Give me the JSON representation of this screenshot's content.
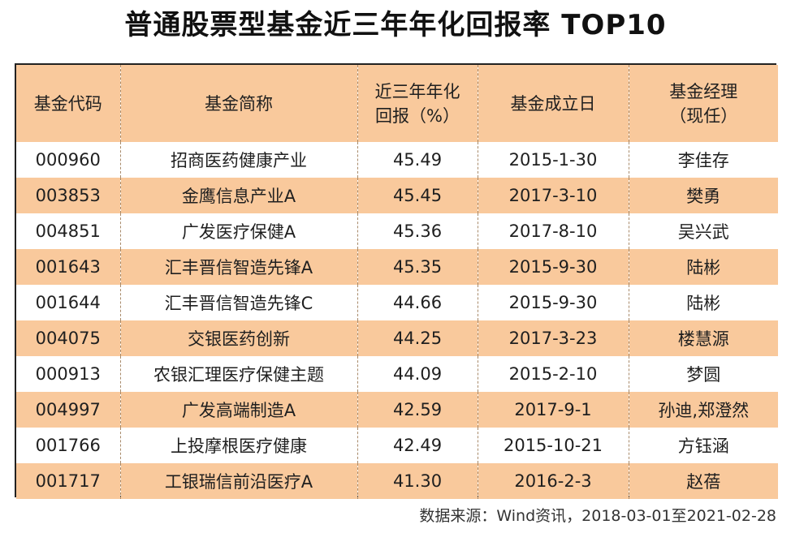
{
  "title": "普通股票型基金近三年年化回报率 TOP10",
  "source": "数据来源：Wind资讯，2018-03-01至2021-02-28",
  "colors": {
    "header_bg": "#f9c99c",
    "stripe_bg": "#f9c99c",
    "plain_bg": "#ffffff"
  },
  "chart_data": {
    "type": "table",
    "title": "普通股票型基金近三年年化回报率 TOP10",
    "columns": [
      {
        "line1": "基金代码",
        "line2": ""
      },
      {
        "line1": "基金简称",
        "line2": ""
      },
      {
        "line1": "近三年年化",
        "line2": "回报（%）"
      },
      {
        "line1": "基金成立日",
        "line2": ""
      },
      {
        "line1": "基金经理",
        "line2": "（现任）"
      }
    ],
    "rows": [
      [
        "000960",
        "招商医药健康产业",
        "45.49",
        "2015-1-30",
        "李佳存"
      ],
      [
        "003853",
        "金鹰信息产业A",
        "45.45",
        "2017-3-10",
        "樊勇"
      ],
      [
        "004851",
        "广发医疗保健A",
        "45.36",
        "2017-8-10",
        "吴兴武"
      ],
      [
        "001643",
        "汇丰晋信智造先锋A",
        "45.35",
        "2015-9-30",
        "陆彬"
      ],
      [
        "001644",
        "汇丰晋信智造先锋C",
        "44.66",
        "2015-9-30",
        "陆彬"
      ],
      [
        "004075",
        "交银医药创新",
        "44.25",
        "2017-3-23",
        "楼慧源"
      ],
      [
        "000913",
        "农银汇理医疗保健主题",
        "44.09",
        "2015-2-10",
        "梦圆"
      ],
      [
        "004997",
        "广发高端制造A",
        "42.59",
        "2017-9-1",
        "孙迪,郑澄然"
      ],
      [
        "001766",
        "上投摩根医疗健康",
        "42.49",
        "2015-10-21",
        "方钰涵"
      ],
      [
        "001717",
        "工银瑞信前沿医疗A",
        "41.30",
        "2016-2-3",
        "赵蓓"
      ]
    ]
  }
}
